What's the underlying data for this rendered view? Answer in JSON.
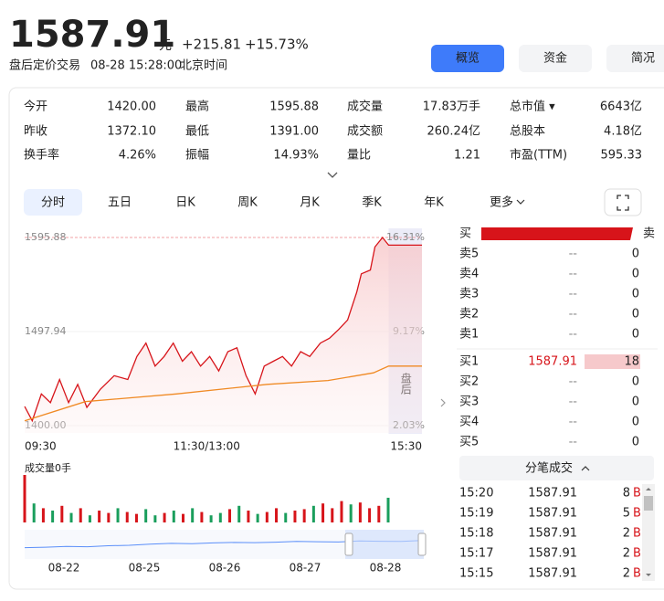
{
  "header": {
    "price": "1587.91",
    "unit": "元",
    "change": "+215.81",
    "change_pct": "+15.73%",
    "status": "盘后定价交易",
    "time": "08-28 15:28:00",
    "timezone": "北京时间"
  },
  "nav_buttons": [
    "概览",
    "资金",
    "简况"
  ],
  "stats": [
    [
      [
        "今开",
        "1420.00"
      ],
      [
        "最高",
        "1595.88"
      ],
      [
        "成交量",
        "17.83万手"
      ],
      [
        "总市值 ▾",
        "6643亿"
      ]
    ],
    [
      [
        "昨收",
        "1372.10"
      ],
      [
        "最低",
        "1391.00"
      ],
      [
        "成交额",
        "260.24亿"
      ],
      [
        "总股本",
        "4.18亿"
      ]
    ],
    [
      [
        "换手率",
        "4.26%"
      ],
      [
        "振幅",
        "14.93%"
      ],
      [
        "量比",
        "1.21"
      ],
      [
        "市盈(TTM)",
        "595.33"
      ]
    ]
  ],
  "tabs": [
    "分时",
    "五日",
    "日K",
    "周K",
    "月K",
    "季K",
    "年K",
    "更多"
  ],
  "chart_data": {
    "type": "line",
    "xlim": [
      0,
      262
    ],
    "ylim": [
      1400,
      1595.88
    ],
    "y2lim": [
      2.03,
      16.31
    ],
    "yticks": [
      1595.88,
      1497.94,
      {
        "value": 1400,
        "label": "1400.00"
      }
    ],
    "y2ticks": [
      {
        "value": 16.31,
        "label": "16.31%"
      },
      {
        "value": 9.17,
        "label": "9.17%"
      },
      {
        "value": 2.03,
        "label": "2.03%"
      }
    ],
    "xticks": [
      {
        "value": 0,
        "label": "09:30"
      },
      {
        "value": 120,
        "label": "11:30/13:00"
      },
      {
        "value": 262,
        "label": "15:30"
      }
    ],
    "post_market": {
      "start": 240,
      "label": "盘后"
    },
    "series": [
      {
        "color": "#d7141a",
        "x": [
          0,
          5,
          11,
          17,
          23,
          29,
          35,
          41,
          50,
          59,
          68,
          74,
          80,
          86,
          92,
          98,
          104,
          110,
          116,
          122,
          128,
          134,
          140,
          146,
          152,
          158,
          164,
          170,
          176,
          182,
          188,
          195,
          201,
          207,
          213,
          219,
          222,
          228,
          231,
          236,
          240,
          262
        ],
        "values": [
          1420,
          1405,
          1433,
          1424,
          1448,
          1424,
          1443,
          1419,
          1438,
          1452,
          1448,
          1472,
          1486,
          1462,
          1472,
          1486,
          1467,
          1477,
          1462,
          1472,
          1457,
          1477,
          1481,
          1452,
          1433,
          1462,
          1467,
          1472,
          1462,
          1477,
          1472,
          1486,
          1491,
          1500,
          1510,
          1539,
          1558,
          1562,
          1586,
          1595.88,
          1587.91,
          1587.91
        ]
      },
      {
        "color": "#f08a24",
        "x": [
          0,
          40,
          100,
          160,
          200,
          230,
          240,
          262
        ],
        "values": [
          1405,
          1425,
          1433,
          1443,
          1447,
          1455,
          1462,
          1462
        ]
      }
    ],
    "volume": {
      "title": "成交量0手",
      "ylim": [
        0,
        100
      ],
      "values": [
        100,
        40,
        30,
        25,
        35,
        20,
        30,
        15,
        25,
        20,
        30,
        22,
        18,
        28,
        15,
        20,
        25,
        18,
        30,
        22,
        15,
        20,
        28,
        35,
        25,
        18,
        22,
        30,
        20,
        25,
        28,
        35,
        40,
        30,
        45,
        38,
        42,
        30,
        35,
        52
      ],
      "colors": [
        "#d7141a",
        "#1a9e5c",
        "#d7141a",
        "#1a9e5c",
        "#d7141a",
        "#1a9e5c",
        "#d7141a",
        "#1a9e5c",
        "#d7141a",
        "#d7141a",
        "#1a9e5c",
        "#d7141a",
        "#d7141a",
        "#1a9e5c",
        "#1a9e5c",
        "#d7141a",
        "#1a9e5c",
        "#d7141a",
        "#1a9e5c",
        "#d7141a",
        "#1a9e5c",
        "#1a9e5c",
        "#d7141a",
        "#1a9e5c",
        "#d7141a",
        "#1a9e5c",
        "#d7141a",
        "#d7141a",
        "#1a9e5c",
        "#d7141a",
        "#d7141a",
        "#1a9e5c",
        "#d7141a",
        "#d7141a",
        "#d7141a",
        "#1a9e5c",
        "#d7141a",
        "#d7141a",
        "#d7141a",
        "#1a9e5c"
      ]
    },
    "navigator": {
      "ylim": [
        0,
        100
      ],
      "values": [
        40,
        42,
        45,
        44,
        48,
        50,
        55,
        58,
        57,
        60,
        62,
        61,
        63,
        66,
        65,
        64,
        68,
        67,
        66,
        70
      ],
      "dates": [
        "08-22",
        "08-25",
        "08-26",
        "08-27",
        "08-28"
      ]
    }
  },
  "order_book": {
    "buy": "买",
    "sell": "卖",
    "asks": [
      {
        "label": "卖5",
        "price": "--",
        "volume": 0
      },
      {
        "label": "卖4",
        "price": "--",
        "volume": 0
      },
      {
        "label": "卖3",
        "price": "--",
        "volume": 0
      },
      {
        "label": "卖2",
        "price": "--",
        "volume": 0
      },
      {
        "label": "卖1",
        "price": "--",
        "volume": 0
      }
    ],
    "bids": [
      {
        "label": "买1",
        "price": "1587.91",
        "volume": 18
      },
      {
        "label": "买2",
        "price": "--",
        "volume": 0
      },
      {
        "label": "买3",
        "price": "--",
        "volume": 0
      },
      {
        "label": "买4",
        "price": "--",
        "volume": 0
      },
      {
        "label": "买5",
        "price": "--",
        "volume": 0
      }
    ]
  },
  "trades": {
    "title": "分笔成交",
    "rows": [
      {
        "time": "15:20",
        "price": "1587.91",
        "volume": 8,
        "side": "B"
      },
      {
        "time": "15:19",
        "price": "1587.91",
        "volume": 5,
        "side": "B"
      },
      {
        "time": "15:18",
        "price": "1587.91",
        "volume": 2,
        "side": "B"
      },
      {
        "time": "15:17",
        "price": "1587.91",
        "volume": 2,
        "side": "B"
      },
      {
        "time": "15:15",
        "price": "1587.91",
        "volume": 2,
        "side": "B"
      }
    ]
  }
}
